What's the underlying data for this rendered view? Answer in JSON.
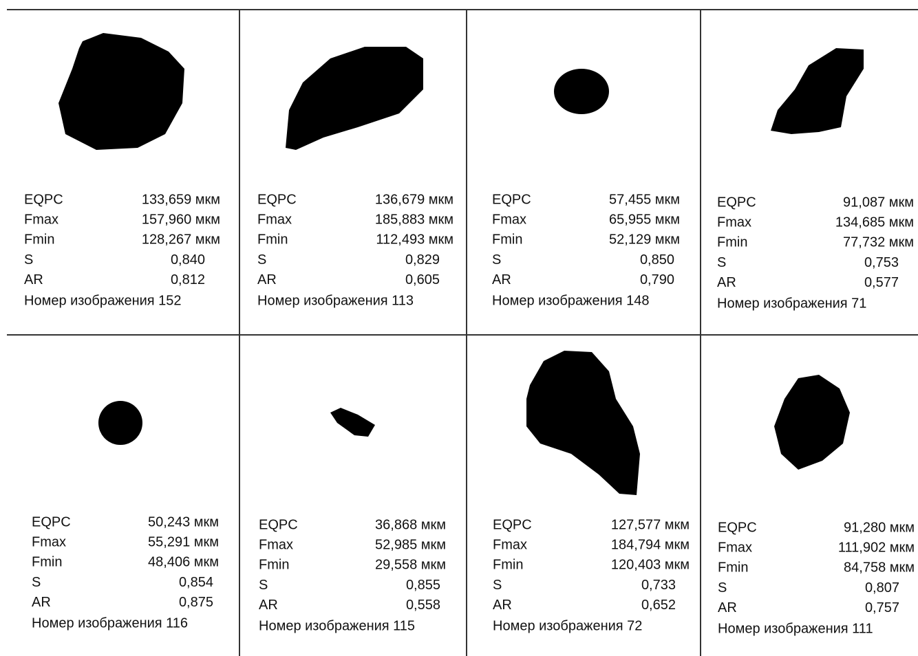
{
  "panels": [
    {
      "rows": [
        {
          "label": "EQPC",
          "value": "133,659 мкм"
        },
        {
          "label": "Fmax",
          "value": "157,960 мкм"
        },
        {
          "label": "Fmin",
          "value": "128,267 мкм"
        },
        {
          "label": "S",
          "value": "0,840"
        },
        {
          "label": "AR",
          "value": "0,812"
        }
      ],
      "image_number": "Номер изображения 152"
    },
    {
      "rows": [
        {
          "label": "EQPC",
          "value": "136,679 мкм"
        },
        {
          "label": "Fmax",
          "value": "185,883 мкм"
        },
        {
          "label": "Fmin",
          "value": "112,493 мкм"
        },
        {
          "label": "S",
          "value": "0,829"
        },
        {
          "label": "AR",
          "value": "0,605"
        }
      ],
      "image_number": "Номер изображения 113"
    },
    {
      "rows": [
        {
          "label": "EQPC",
          "value": "57,455 мкм"
        },
        {
          "label": "Fmax",
          "value": "65,955 мкм"
        },
        {
          "label": "Fmin",
          "value": "52,129 мкм"
        },
        {
          "label": "S",
          "value": "0,850"
        },
        {
          "label": "AR",
          "value": "0,790"
        }
      ],
      "image_number": "Номер изображения 148"
    },
    {
      "rows": [
        {
          "label": "EQPC",
          "value": "91,087 мкм"
        },
        {
          "label": "Fmax",
          "value": "134,685 мкм"
        },
        {
          "label": "Fmin",
          "value": "77,732 мкм"
        },
        {
          "label": "S",
          "value": "0,753"
        },
        {
          "label": "AR",
          "value": "0,577"
        }
      ],
      "image_number": "Номер изображения 71"
    },
    {
      "rows": [
        {
          "label": "EQPC",
          "value": "50,243 мкм"
        },
        {
          "label": "Fmax",
          "value": "55,291 мкм"
        },
        {
          "label": "Fmin",
          "value": "48,406 мкм"
        },
        {
          "label": "S",
          "value": "0,854"
        },
        {
          "label": "AR",
          "value": "0,875"
        }
      ],
      "image_number": "Номер изображения 116"
    },
    {
      "rows": [
        {
          "label": "EQPC",
          "value": "36,868 мкм"
        },
        {
          "label": "Fmax",
          "value": "52,985 мкм"
        },
        {
          "label": "Fmin",
          "value": "29,558 мкм"
        },
        {
          "label": "S",
          "value": "0,855"
        },
        {
          "label": "AR",
          "value": "0,558"
        }
      ],
      "image_number": "Номер изображения 115"
    },
    {
      "rows": [
        {
          "label": "EQPC",
          "value": "127,577 мкм"
        },
        {
          "label": "Fmax",
          "value": "184,794 мкм"
        },
        {
          "label": "Fmin",
          "value": "120,403 мкм"
        },
        {
          "label": "S",
          "value": "0,733"
        },
        {
          "label": "AR",
          "value": "0,652"
        }
      ],
      "image_number": "Номер изображения 72"
    },
    {
      "rows": [
        {
          "label": "EQPC",
          "value": "91,280 мкм"
        },
        {
          "label": "Fmax",
          "value": "111,902 мкм"
        },
        {
          "label": "Fmin",
          "value": "84,758 мкм"
        },
        {
          "label": "S",
          "value": "0,807"
        },
        {
          "label": "AR",
          "value": "0,757"
        }
      ],
      "image_number": "Номер изображения 111"
    }
  ]
}
